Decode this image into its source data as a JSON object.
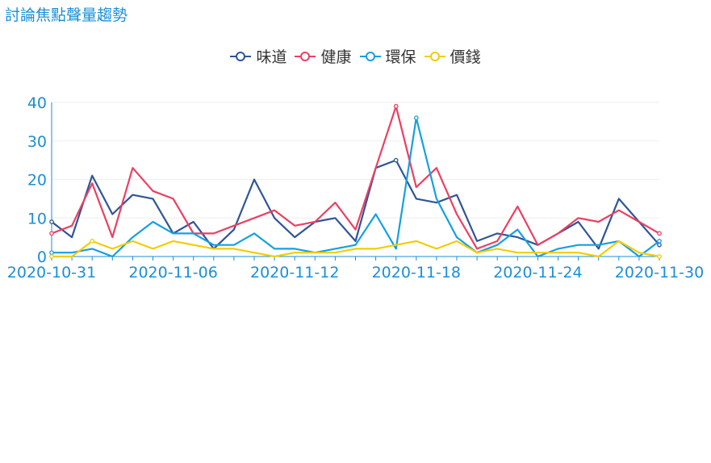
{
  "chart_data": {
    "type": "line",
    "title": "討論焦點聲量趨勢",
    "xlabel": "",
    "ylabel": "",
    "ylim": [
      0,
      40
    ],
    "yticks": [
      0,
      10,
      20,
      30,
      40
    ],
    "grid": "horizontal",
    "legend_position": "top-center",
    "x": [
      "2020-10-31",
      "2020-11-01",
      "2020-11-02",
      "2020-11-03",
      "2020-11-04",
      "2020-11-05",
      "2020-11-06",
      "2020-11-07",
      "2020-11-08",
      "2020-11-09",
      "2020-11-10",
      "2020-11-11",
      "2020-11-12",
      "2020-11-13",
      "2020-11-14",
      "2020-11-15",
      "2020-11-16",
      "2020-11-17",
      "2020-11-18",
      "2020-11-19",
      "2020-11-20",
      "2020-11-21",
      "2020-11-22",
      "2020-11-23",
      "2020-11-24",
      "2020-11-25",
      "2020-11-26",
      "2020-11-27",
      "2020-11-28",
      "2020-11-29",
      "2020-11-30"
    ],
    "xtick_labels": [
      "2020-10-31",
      "2020-11-06",
      "2020-11-12",
      "2020-11-18",
      "2020-11-24",
      "2020-11-30"
    ],
    "series": [
      {
        "name": "味道",
        "color": "#2f5597",
        "values": [
          9,
          5,
          21,
          11,
          16,
          15,
          6,
          9,
          2,
          7,
          20,
          10,
          5,
          9,
          10,
          4,
          23,
          25,
          15,
          14,
          16,
          4,
          6,
          5,
          3,
          6,
          9,
          2,
          15,
          9,
          3
        ]
      },
      {
        "name": "健康",
        "color": "#ec3f62",
        "values": [
          6,
          8,
          19,
          5,
          23,
          17,
          15,
          6,
          6,
          8,
          10,
          12,
          8,
          9,
          14,
          7,
          23,
          39,
          18,
          23,
          11,
          2,
          4,
          13,
          3,
          6,
          10,
          9,
          12,
          9,
          6
        ]
      },
      {
        "name": "環保",
        "color": "#14a0e0",
        "values": [
          1,
          1,
          2,
          0,
          5,
          9,
          6,
          6,
          3,
          3,
          6,
          2,
          2,
          1,
          2,
          3,
          11,
          2,
          36,
          15,
          5,
          1,
          3,
          7,
          0,
          2,
          3,
          3,
          4,
          0,
          4
        ]
      },
      {
        "name": "價錢",
        "color": "#f2cd00",
        "values": [
          0,
          0,
          4,
          2,
          4,
          2,
          4,
          3,
          2,
          2,
          1,
          0,
          1,
          1,
          1,
          2,
          2,
          3,
          4,
          2,
          4,
          1,
          2,
          1,
          1,
          1,
          1,
          0,
          4,
          1,
          0
        ]
      }
    ]
  }
}
